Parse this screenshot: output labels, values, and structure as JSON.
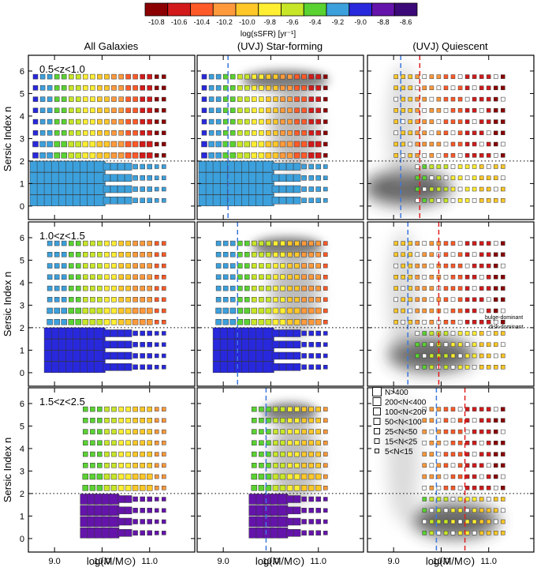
{
  "colorbar": {
    "label": "log(sSFR) [yr⁻¹]",
    "ticks": [
      "-10.8",
      "-10.6",
      "-10.4",
      "-10.2",
      "-10.0",
      "-9.8",
      "-9.6",
      "-9.4",
      "-9.2",
      "-9.0",
      "-8.8",
      "-8.6"
    ],
    "colors": [
      "#8b0000",
      "#d21a1a",
      "#ff5a28",
      "#ff9a3c",
      "#ffc828",
      "#ffee32",
      "#c8e628",
      "#5ad232",
      "#3ca0dc",
      "#2828dc",
      "#6414aa",
      "#3c0a78"
    ]
  },
  "chart_data": {
    "type": "scatter",
    "layout": "3x3 grid of panels (rows: redshift bins; columns: sample)",
    "columns": [
      "All Galaxies",
      "(UVJ) Star-forming",
      "(UVJ) Quiescent"
    ],
    "rows": [
      "0.5<z<1.0",
      "1.0<z<1.5",
      "1.5<z<2.5"
    ],
    "xlabel": "log(M/M⊙)",
    "ylabel": "Sersic Index n",
    "xlim": [
      8.45,
      11.95
    ],
    "ylim": [
      -0.6,
      6.7
    ],
    "xticks": [
      "9.0",
      "10.0",
      "11.0"
    ],
    "yticks": [
      "0",
      "1",
      "2",
      "3",
      "4",
      "5",
      "6"
    ],
    "divider_n": 2.0,
    "divider_labels": [
      "bulge-dominant",
      "disk-dominant"
    ],
    "legend": {
      "position": "top-left of bottom-right panel",
      "entries": [
        "N>400",
        "200<N<400",
        "100<N<200",
        "50<N<100",
        "25<N<50",
        "15<N<25",
        "5<N<15"
      ]
    },
    "mass_limits": {
      "star_forming": [
        9.1,
        9.3,
        9.9
      ],
      "quiescent_blue": [
        9.15,
        9.3,
        9.9
      ],
      "quiescent_red": [
        9.55,
        9.95,
        10.5
      ]
    },
    "grid": {
      "mass_bins": [
        8.6,
        8.75,
        8.9,
        9.05,
        9.2,
        9.35,
        9.5,
        9.65,
        9.8,
        9.95,
        10.1,
        10.25,
        10.4,
        10.55,
        10.7,
        10.85,
        11.0,
        11.15,
        11.3
      ],
      "n_bins": [
        0.25,
        0.75,
        1.25,
        1.75,
        2.25,
        2.75,
        3.25,
        3.75,
        4.25,
        4.75,
        5.25,
        5.75
      ]
    },
    "mass_start": [
      8.6,
      8.9,
      9.65
    ],
    "sample_summary": "colour of each square = mean log(sSFR); size = number of galaxies in the bin; grey shading = galaxy density"
  }
}
